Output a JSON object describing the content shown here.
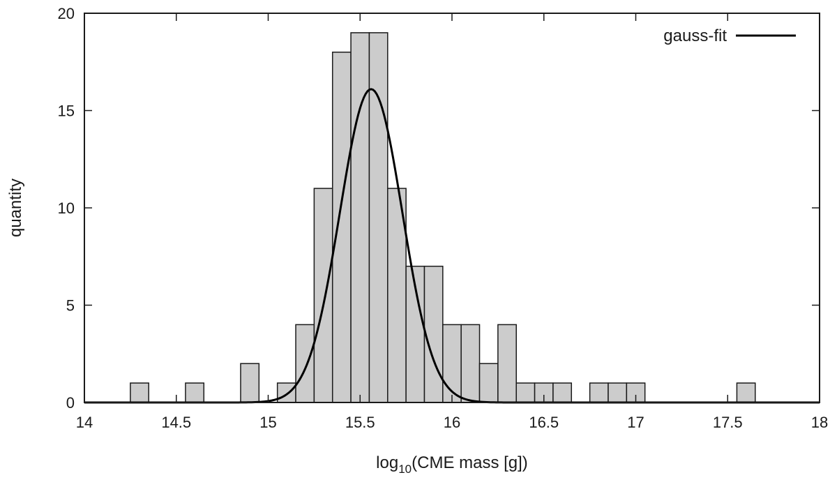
{
  "chart_data": {
    "type": "bar",
    "xlabel_main": "log",
    "xlabel_sub": "10",
    "xlabel_rest": "(CME mass [g])",
    "ylabel": "quantity",
    "xlim": [
      14,
      18
    ],
    "ylim": [
      0,
      20
    ],
    "xticks": [
      "14",
      "14.5",
      "15",
      "15.5",
      "16",
      "16.5",
      "17",
      "17.5",
      "18"
    ],
    "xtick_values": [
      14,
      14.5,
      15,
      15.5,
      16,
      16.5,
      17,
      17.5,
      18
    ],
    "yticks": [
      "0",
      "5",
      "10",
      "15",
      "20"
    ],
    "ytick_values": [
      0,
      5,
      10,
      15,
      20
    ],
    "bin_width": 0.1,
    "bins": [
      {
        "center": 14.3,
        "count": 1
      },
      {
        "center": 14.6,
        "count": 1
      },
      {
        "center": 14.9,
        "count": 2
      },
      {
        "center": 15.1,
        "count": 1
      },
      {
        "center": 15.2,
        "count": 4
      },
      {
        "center": 15.3,
        "count": 11
      },
      {
        "center": 15.4,
        "count": 18
      },
      {
        "center": 15.5,
        "count": 19
      },
      {
        "center": 15.6,
        "count": 19
      },
      {
        "center": 15.7,
        "count": 11
      },
      {
        "center": 15.8,
        "count": 7
      },
      {
        "center": 15.9,
        "count": 7
      },
      {
        "center": 16.0,
        "count": 4
      },
      {
        "center": 16.1,
        "count": 4
      },
      {
        "center": 16.2,
        "count": 2
      },
      {
        "center": 16.3,
        "count": 4
      },
      {
        "center": 16.4,
        "count": 1
      },
      {
        "center": 16.5,
        "count": 1
      },
      {
        "center": 16.6,
        "count": 1
      },
      {
        "center": 16.8,
        "count": 1
      },
      {
        "center": 16.9,
        "count": 1
      },
      {
        "center": 17.0,
        "count": 1
      },
      {
        "center": 17.6,
        "count": 1
      }
    ],
    "series": [
      {
        "name": "gauss-fit",
        "type": "line",
        "function": "gaussian",
        "amplitude": 16.1,
        "mean": 15.56,
        "sigma": 0.17
      }
    ],
    "legend": {
      "position": "top-right",
      "entries": [
        "gauss-fit"
      ]
    }
  }
}
